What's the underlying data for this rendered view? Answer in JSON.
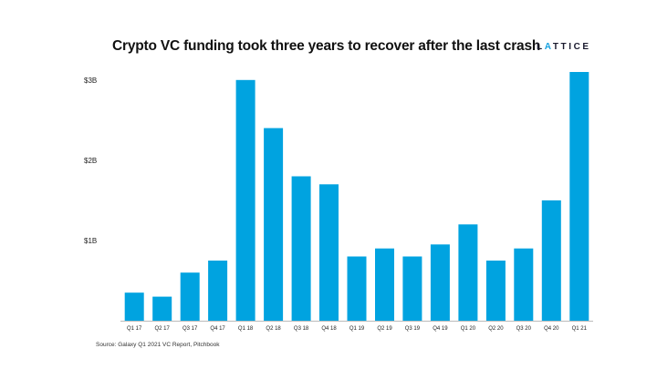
{
  "header": {
    "title": "Crypto VC funding took three years to recover after the last crash",
    "logo_text": "LATTICE"
  },
  "footer": {
    "source": "Source: Galaxy Q1 2021 VC Report, Pitchbook"
  },
  "colors": {
    "bar": "#00a3e0",
    "accent": "#17a2e0"
  },
  "chart_data": {
    "type": "bar",
    "categories": [
      "Q1 17",
      "Q2 17",
      "Q3 17",
      "Q4 17",
      "Q1 18",
      "Q2 18",
      "Q3 18",
      "Q4 18",
      "Q1 19",
      "Q2 19",
      "Q3 19",
      "Q4 19",
      "Q1 20",
      "Q2 20",
      "Q3 20",
      "Q4 20",
      "Q1 21"
    ],
    "values": [
      0.35,
      0.3,
      0.6,
      0.75,
      3.0,
      2.4,
      1.8,
      1.7,
      0.8,
      0.9,
      0.8,
      0.95,
      1.2,
      0.75,
      0.9,
      1.5,
      3.1
    ],
    "unit": "billions USD",
    "yticks": [
      {
        "value": 1,
        "label": "$1B"
      },
      {
        "value": 2,
        "label": "$2B"
      },
      {
        "value": 3,
        "label": "$3B"
      }
    ],
    "ylim": [
      0,
      3.1
    ],
    "grid": false,
    "legend": "none",
    "title": "Crypto VC funding took three years to recover after the last crash",
    "xlabel": "",
    "ylabel": ""
  }
}
